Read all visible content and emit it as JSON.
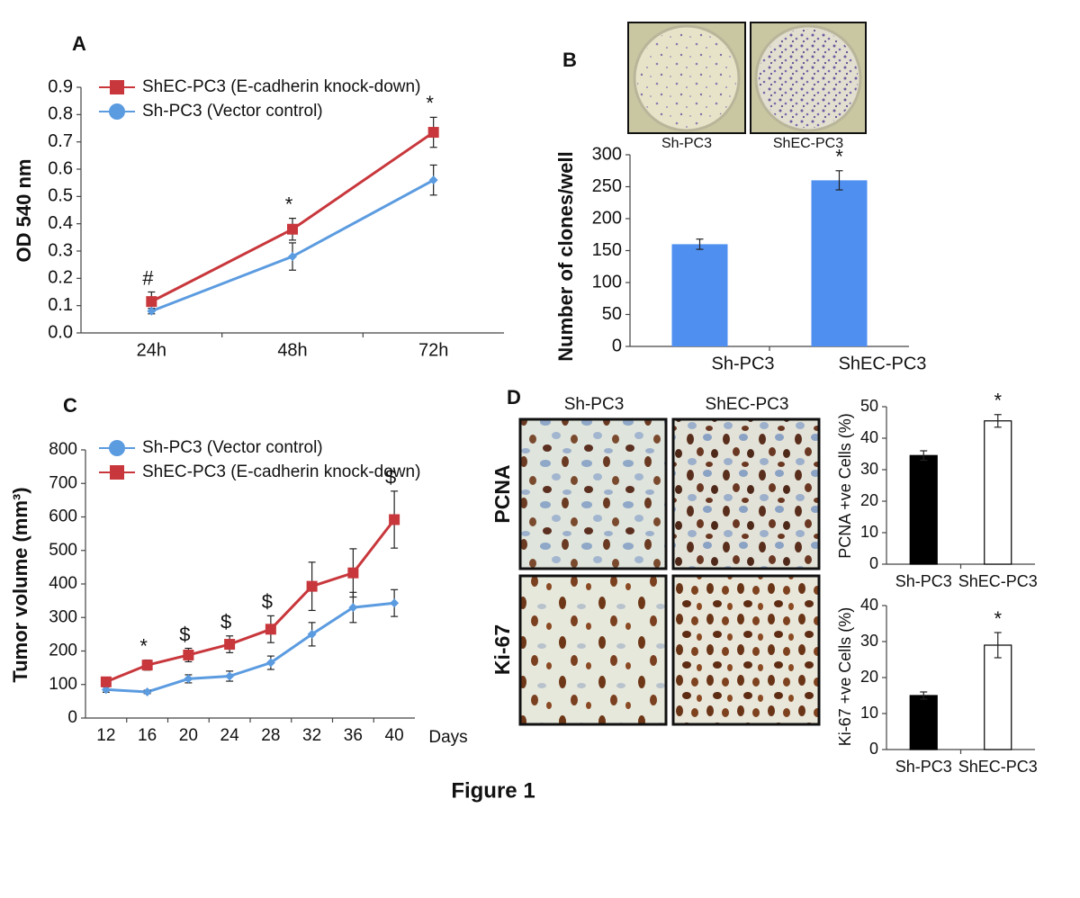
{
  "figure_title": "Figure 1",
  "panel_d_images": {
    "columns": [
      "Sh-PC3",
      "ShEC-PC3"
    ],
    "rows": [
      "PCNA",
      "Ki-67"
    ]
  },
  "chart_data": [
    {
      "type": "line",
      "panel": "A",
      "ylabel": "OD 540 nm",
      "categories": [
        "24h",
        "48h",
        "72h"
      ],
      "series": [
        {
          "name": "ShEC-PC3 (E-cadherin knock-down)",
          "color": "#c8373c",
          "marker": "square",
          "values": [
            0.115,
            0.38,
            0.735
          ],
          "errors": [
            0.035,
            0.04,
            0.055
          ]
        },
        {
          "name": "Sh-PC3 (Vector control)",
          "color": "#5b9be0",
          "marker": "diamond",
          "values": [
            0.08,
            0.28,
            0.56
          ],
          "errors": [
            0.01,
            0.05,
            0.055
          ]
        }
      ],
      "annotations": [
        "#",
        "*",
        "*"
      ],
      "ylim": [
        0,
        0.9
      ],
      "yticks": [
        {
          "value": 0,
          "label": "0.0"
        },
        0.1,
        0.2,
        0.3,
        0.4,
        0.5,
        0.6,
        0.7,
        0.8,
        0.9
      ]
    },
    {
      "type": "bar",
      "panel": "B",
      "image_labels": [
        "Sh-PC3",
        "ShEC-PC3"
      ],
      "ylabel": "Number of clones/well",
      "categories": [
        "Sh-PC3",
        "ShEC-PC3"
      ],
      "values": [
        160,
        260
      ],
      "errors": [
        8,
        15
      ],
      "color": "#4f8ff0",
      "annotations": [
        null,
        "*"
      ],
      "ylim": [
        0,
        300
      ],
      "yticks": [
        0,
        50,
        100,
        150,
        200,
        250,
        300
      ]
    },
    {
      "type": "line",
      "panel": "C",
      "ylabel": "Tumor volume (mm³)",
      "x_label": "Days",
      "categories": [
        "12",
        "16",
        "20",
        "24",
        "28",
        "32",
        "36",
        "40"
      ],
      "series": [
        {
          "name": "Sh-PC3 (Vector control)",
          "color": "#5b9be0",
          "marker": "diamond",
          "values": [
            85,
            78,
            117,
            125,
            165,
            250,
            330,
            343
          ],
          "errors": [
            8,
            5,
            12,
            15,
            20,
            35,
            45,
            40
          ]
        },
        {
          "name": "ShEC-PC3 (E-cadherin knock-down)",
          "color": "#c8373c",
          "marker": "square",
          "values": [
            108,
            158,
            188,
            220,
            265,
            393,
            433,
            592
          ],
          "errors": [
            10,
            15,
            20,
            25,
            40,
            72,
            72,
            85
          ]
        }
      ],
      "annotations": [
        null,
        "*",
        "$",
        "$",
        "$",
        null,
        null,
        "$"
      ],
      "ylim": [
        0,
        800
      ],
      "yticks": [
        0,
        100,
        200,
        300,
        400,
        500,
        600,
        700,
        800
      ]
    },
    {
      "type": "bar",
      "panel": "D",
      "ylabel": "PCNA +ve Cells (%)",
      "categories": [
        "Sh-PC3",
        "ShEC-PC3"
      ],
      "values": [
        34.5,
        45.5
      ],
      "errors": [
        1.5,
        2
      ],
      "colors": [
        "#000000",
        "#ffffff"
      ],
      "annotations": [
        null,
        "*"
      ],
      "ylim": [
        0,
        50
      ],
      "yticks": [
        0,
        10,
        20,
        30,
        40,
        50
      ]
    },
    {
      "type": "bar",
      "ylabel": "Ki-67 +ve Cells (%)",
      "categories": [
        "Sh-PC3",
        "ShEC-PC3"
      ],
      "values": [
        15,
        29
      ],
      "errors": [
        1,
        3.5
      ],
      "colors": [
        "#000000",
        "#ffffff"
      ],
      "annotations": [
        null,
        "*"
      ],
      "ylim": [
        0,
        40
      ],
      "yticks": [
        0,
        10,
        20,
        30,
        40
      ]
    }
  ]
}
